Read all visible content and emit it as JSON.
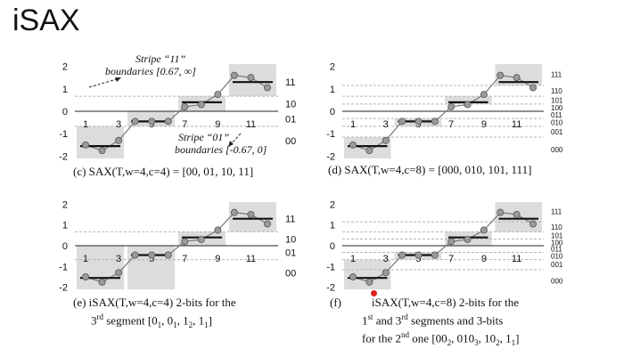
{
  "title": "iSAX",
  "colors": {
    "shade": "#dcdcdc",
    "dashed": "#b4b4b4",
    "series": "#777777",
    "point": "#9a9a9a",
    "segment": "#111111",
    "cursor": "#e02020"
  },
  "series_y": [
    -1.5,
    -1.75,
    -1.3,
    -0.45,
    -0.45,
    -0.45,
    0.2,
    0.3,
    0.75,
    1.6,
    1.5,
    1.05
  ],
  "panels": [
    {
      "id": "c",
      "caption": "(c) SAX(T,w=4,c=4) = [00, 01, 10, 11]",
      "breakpoints": [
        -0.67,
        0,
        0.67
      ],
      "bands": [
        [
          -3,
          -0.67
        ],
        [
          -0.67,
          0
        ],
        [
          0,
          0.67
        ],
        [
          0.67,
          3
        ]
      ],
      "bit_labels": [
        "00",
        "01",
        "10",
        "11"
      ],
      "segments": [
        {
          "band": 0,
          "mean": -1.55
        },
        {
          "band": 1,
          "mean": -0.45
        },
        {
          "band": 2,
          "mean": 0.4
        },
        {
          "band": 3,
          "mean": 1.3
        }
      ],
      "notes": {
        "stripe11": "Stripe “11”",
        "boundaries11": "boundaries [0.67, ∞]",
        "stripe01": "Stripe “01”",
        "boundaries01": "boundaries [-0.67, 0]"
      }
    },
    {
      "id": "d",
      "caption": "(d) SAX(T,w=4,c=8) = [000, 010, 101, 111]",
      "breakpoints": [
        -1.15,
        -0.67,
        -0.32,
        0,
        0.32,
        0.67,
        1.15
      ],
      "bands": [
        [
          -3,
          -1.15
        ],
        [
          -0.67,
          -0.32
        ],
        [
          0.32,
          0.67
        ],
        [
          1.15,
          3
        ]
      ],
      "bit_labels": [
        "000",
        "001",
        "010",
        "011",
        "100",
        "101",
        "110",
        "111"
      ],
      "segments": [
        {
          "band": 0,
          "mean": -1.55
        },
        {
          "band": 1,
          "mean": -0.45
        },
        {
          "band": 2,
          "mean": 0.4
        },
        {
          "band": 3,
          "mean": 1.3
        }
      ]
    },
    {
      "id": "e",
      "caption_line1": "(e) iSAX(T,w=4,c=4)    2-bits for the",
      "caption_line2_pre": "3",
      "caption_line2_sup": "rd",
      "caption_line2_mid": " segment [0",
      "subs": [
        "1",
        "1",
        "2",
        "1"
      ],
      "parts": [
        "0",
        "1",
        "1"
      ],
      "breakpoints": [
        -0.67,
        0,
        0.67
      ],
      "bands": [
        [
          -3,
          0
        ],
        [
          -3,
          0
        ],
        [
          0,
          0.67
        ],
        [
          0.67,
          3
        ]
      ],
      "bit_labels": [
        "00",
        "01",
        "10",
        "11"
      ],
      "segments": [
        {
          "band": 0,
          "mean": -1.55
        },
        {
          "band": 1,
          "mean": -0.45
        },
        {
          "band": 2,
          "mean": 0.4
        },
        {
          "band": 3,
          "mean": 1.3
        }
      ]
    },
    {
      "id": "f",
      "caption_f": "(f)",
      "caption_line1": "iSAX(T,w=4,c=8)    2-bits for the",
      "caption_line2_a": "1",
      "caption_line2_a_sup": "st",
      "caption_line2_b": "  and  3",
      "caption_line2_b_sup": "rd",
      "caption_line2_c": "  segments and 3-bits",
      "caption_line3_pre": "for the 2",
      "caption_line3_sup": "nd",
      "caption_line3_mid": " one [00",
      "subs": [
        "2",
        "3",
        "2",
        "1"
      ],
      "parts": [
        "010",
        "10",
        "1"
      ],
      "breakpoints": [
        -1.15,
        -0.67,
        -0.32,
        0,
        0.32,
        0.67,
        1.15
      ],
      "bands": [
        [
          -3,
          -0.67
        ],
        [
          -0.67,
          -0.32
        ],
        [
          0,
          0.67
        ],
        [
          0.67,
          3
        ]
      ],
      "bit_labels": [
        "000",
        "001",
        "010",
        "011",
        "100",
        "101",
        "110",
        "111"
      ],
      "segments": [
        {
          "band": 0,
          "mean": -1.55
        },
        {
          "band": 1,
          "mean": -0.45
        },
        {
          "band": 2,
          "mean": 0.4
        },
        {
          "band": 3,
          "mean": 1.3
        }
      ]
    }
  ],
  "y_ticks": [
    "2",
    "1",
    "0",
    "-1",
    "-2"
  ],
  "x_ticks": [
    "1",
    "3",
    "5",
    "7",
    "9",
    "11"
  ]
}
